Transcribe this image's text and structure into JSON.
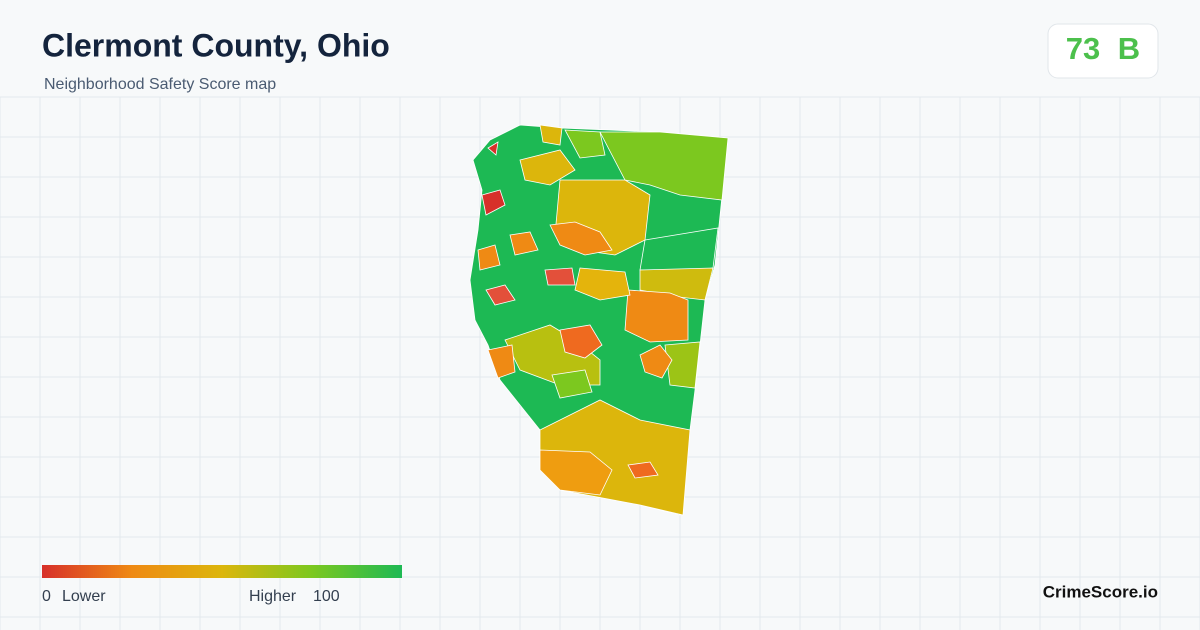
{
  "header": {
    "title": "Clermont County, Ohio",
    "subtitle": "Neighborhood Safety Score map"
  },
  "score": {
    "value": 73,
    "grade": "B"
  },
  "legend": {
    "min": 0,
    "min_label": "Lower",
    "max_label": "Higher",
    "max": 100
  },
  "brand": "CrimeScore.io"
}
